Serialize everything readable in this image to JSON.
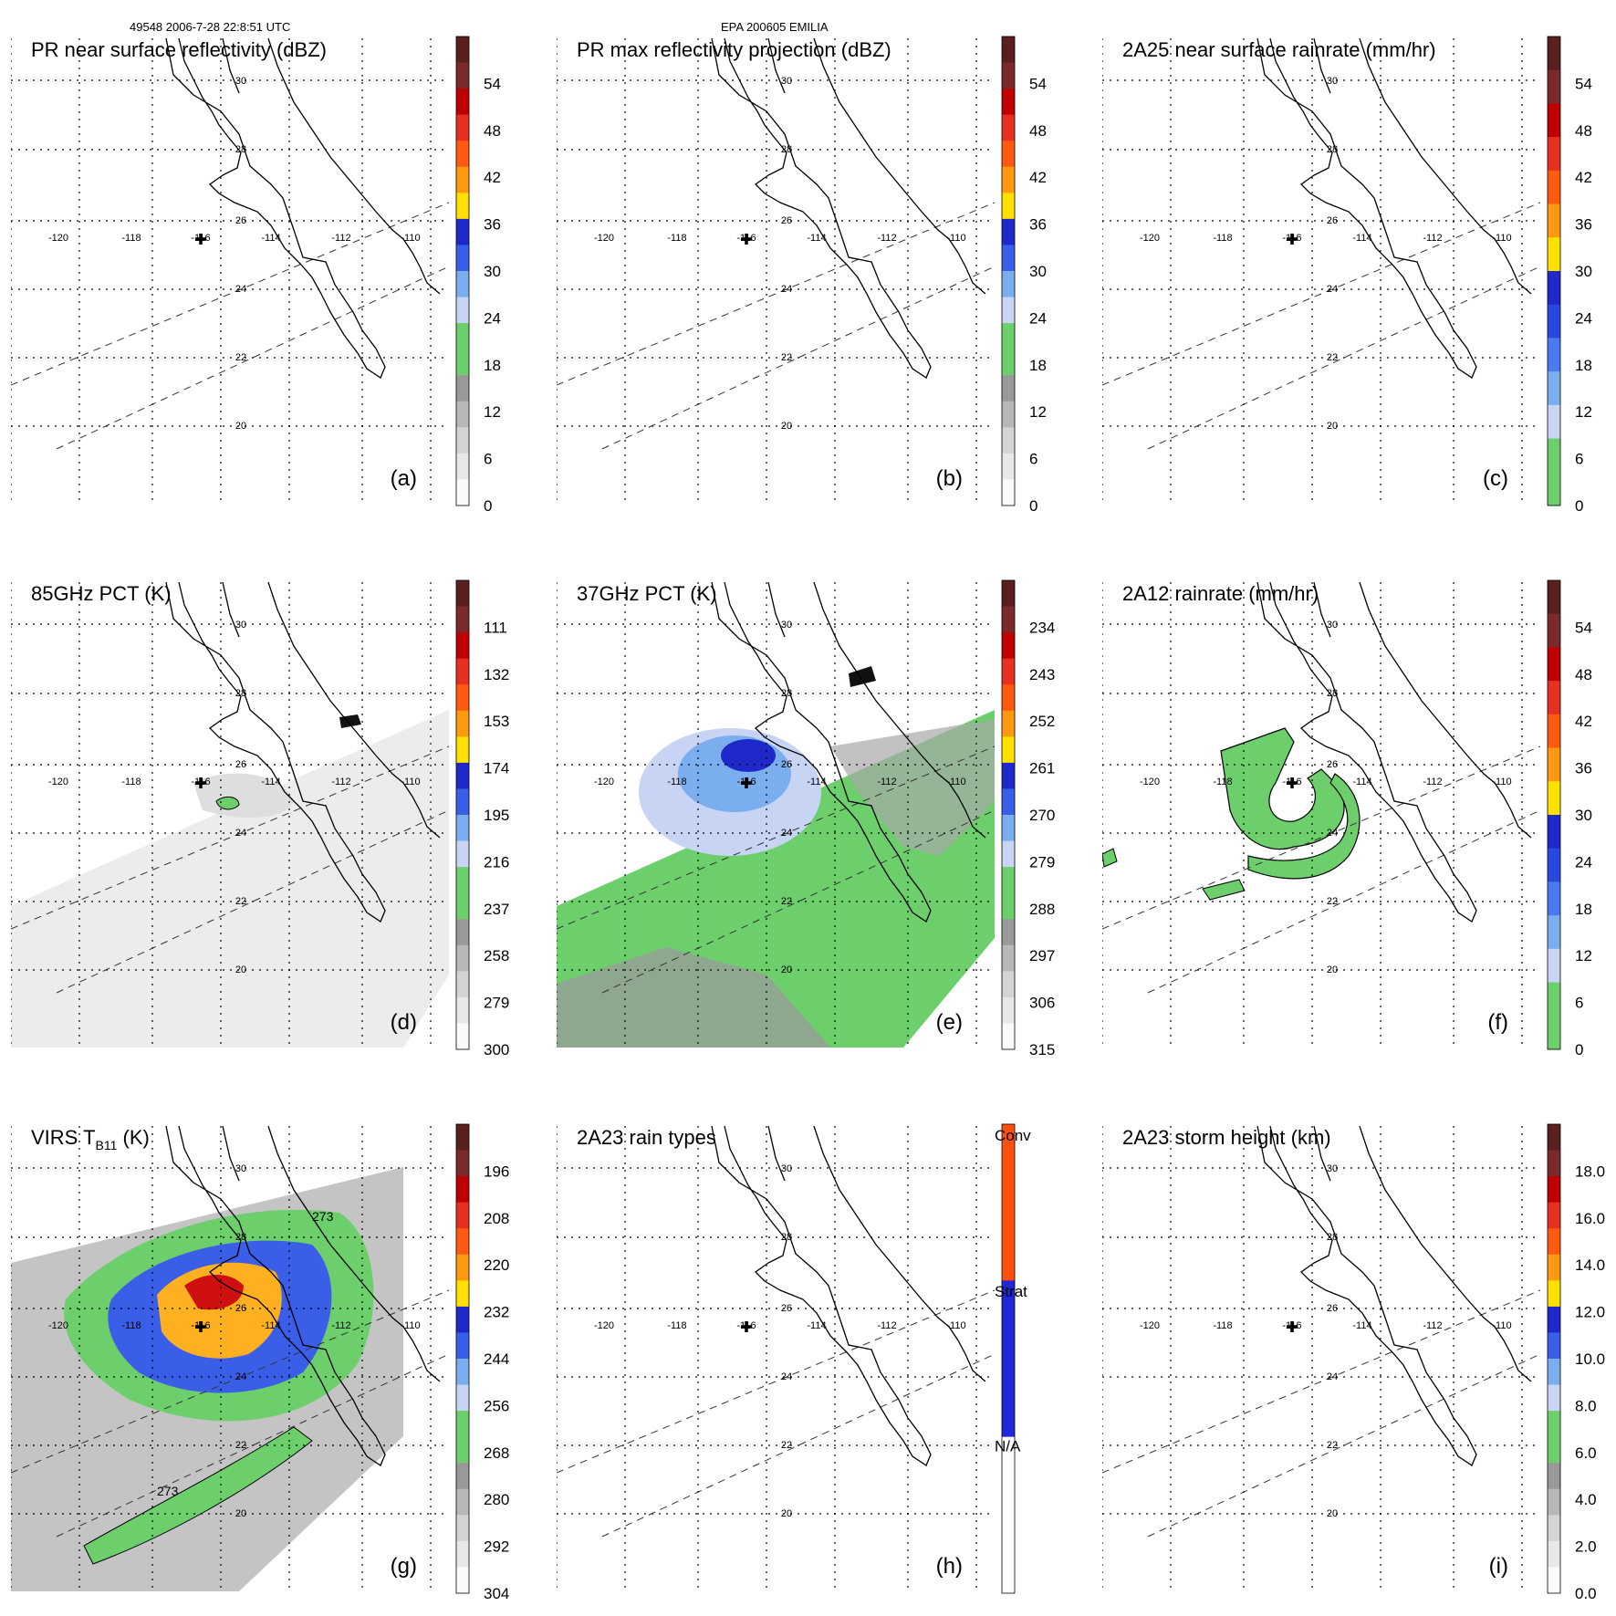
{
  "header": {
    "left": "49548 2006-7-28 22:8:51 UTC",
    "center": "EPA 200605 EMILIA"
  },
  "lon_labels": [
    "-120",
    "-118",
    "-116",
    "-114",
    "-112",
    "-110"
  ],
  "lat_labels": [
    "30",
    "28",
    "26",
    "24",
    "22",
    "20"
  ],
  "panels": [
    {
      "id": "a",
      "title": "PR near surface reflectivity (dBZ)",
      "letter": "(a)",
      "ticks": [
        "54",
        "48",
        "42",
        "36",
        "30",
        "24",
        "18",
        "12",
        "6",
        "0"
      ],
      "colors": [
        "#5a1f1f",
        "#7a2a2a",
        "#c00000",
        "#e83020",
        "#ff5a10",
        "#ff9a10",
        "#ffe000",
        "#1f28c8",
        "#3a5ee8",
        "#7aaeee",
        "#c8d4f4",
        "#6ccf6c",
        "#6ccf6c",
        "#999999",
        "#b8b8b8",
        "#d4d4d4",
        "#e8e8e8",
        "#fafafa"
      ],
      "fill": "none"
    },
    {
      "id": "b",
      "title": "PR max reflectivity projection (dBZ)",
      "letter": "(b)",
      "ticks": [
        "54",
        "48",
        "42",
        "36",
        "30",
        "24",
        "18",
        "12",
        "6",
        "0"
      ],
      "colors": [
        "#5a1f1f",
        "#7a2a2a",
        "#c00000",
        "#e83020",
        "#ff5a10",
        "#ff9a10",
        "#ffe000",
        "#1f28c8",
        "#3a5ee8",
        "#7aaeee",
        "#c8d4f4",
        "#6ccf6c",
        "#6ccf6c",
        "#999999",
        "#b8b8b8",
        "#d4d4d4",
        "#e8e8e8",
        "#fafafa"
      ],
      "fill": "none"
    },
    {
      "id": "c",
      "title": "2A25 near surface rainrate (mm/hr)",
      "letter": "(c)",
      "ticks": [
        "54",
        "48",
        "42",
        "36",
        "30",
        "24",
        "18",
        "12",
        "6",
        "0"
      ],
      "colors": [
        "#5a1f1f",
        "#7a2a2a",
        "#c00000",
        "#e83020",
        "#ff5a10",
        "#ff9a10",
        "#ffe000",
        "#1f28c8",
        "#2a48e0",
        "#4a7aee",
        "#7aaeee",
        "#c8d4f4",
        "#6ccf6c",
        "#6ccf6c"
      ],
      "fill": "none"
    },
    {
      "id": "d",
      "title": "85GHz PCT (K)",
      "letter": "(d)",
      "ticks": [
        "111",
        "132",
        "153",
        "174",
        "195",
        "216",
        "237",
        "258",
        "279",
        "300"
      ],
      "colors": [
        "#5a1f1f",
        "#7a2a2a",
        "#c00000",
        "#e83020",
        "#ff5a10",
        "#ff9a10",
        "#ffe000",
        "#1f28c8",
        "#3a5ee8",
        "#7aaeee",
        "#c8d4f4",
        "#6ccf6c",
        "#6ccf6c",
        "#999999",
        "#b8b8b8",
        "#d4d4d4",
        "#e8e8e8",
        "#fafafa"
      ],
      "fill": "gray"
    },
    {
      "id": "e",
      "title": "37GHz PCT (K)",
      "letter": "(e)",
      "ticks": [
        "234",
        "243",
        "252",
        "261",
        "270",
        "279",
        "288",
        "297",
        "306",
        "315"
      ],
      "colors": [
        "#5a1f1f",
        "#7a2a2a",
        "#c00000",
        "#e83020",
        "#ff5a10",
        "#ff9a10",
        "#ffe000",
        "#1f28c8",
        "#3a5ee8",
        "#7aaeee",
        "#c8d4f4",
        "#6ccf6c",
        "#6ccf6c",
        "#999999",
        "#b8b8b8",
        "#d4d4d4",
        "#e8e8e8",
        "#fafafa"
      ],
      "fill": "green"
    },
    {
      "id": "f",
      "title": "2A12 rainrate (mm/hr)",
      "letter": "(f)",
      "ticks": [
        "54",
        "48",
        "42",
        "36",
        "30",
        "24",
        "18",
        "12",
        "6",
        "0"
      ],
      "colors": [
        "#5a1f1f",
        "#7a2a2a",
        "#c00000",
        "#e83020",
        "#ff5a10",
        "#ff9a10",
        "#ffe000",
        "#1f28c8",
        "#2a48e0",
        "#4a7aee",
        "#7aaeee",
        "#c8d4f4",
        "#6ccf6c",
        "#6ccf6c"
      ],
      "fill": "spiral"
    },
    {
      "id": "g",
      "title": "VIRS T",
      "title_sub": "B11",
      "title_suffix": " (K)",
      "letter": "(g)",
      "ticks": [
        "196",
        "208",
        "220",
        "232",
        "244",
        "256",
        "268",
        "280",
        "292",
        "304"
      ],
      "colors": [
        "#5a1f1f",
        "#7a2a2a",
        "#c00000",
        "#e83020",
        "#ff5a10",
        "#ff9a10",
        "#ffe000",
        "#1f28c8",
        "#3a5ee8",
        "#7aaeee",
        "#c8d4f4",
        "#6ccf6c",
        "#6ccf6c",
        "#999999",
        "#b8b8b8",
        "#d4d4d4",
        "#e8e8e8",
        "#fafafa"
      ],
      "fill": "ir",
      "contour_labels": [
        "273",
        "273"
      ]
    },
    {
      "id": "h",
      "title": "2A23 rain types",
      "letter": "(h)",
      "ticks": [
        "Conv",
        "Strat",
        "N/A"
      ],
      "colors": [
        "#ff5010",
        "#1f28d8",
        "#ffffff"
      ],
      "fill": "none",
      "categorical": true
    },
    {
      "id": "i",
      "title": "2A23 storm height (km)",
      "letter": "(i)",
      "ticks": [
        "18.0",
        "16.0",
        "14.0",
        "12.0",
        "10.0",
        "8.0",
        "6.0",
        "4.0",
        "2.0",
        "0.0"
      ],
      "colors": [
        "#5a1f1f",
        "#7a2a2a",
        "#c00000",
        "#e83020",
        "#ff5a10",
        "#ff9a10",
        "#ffe000",
        "#1f28c8",
        "#3a5ee8",
        "#7aaeee",
        "#c8d4f4",
        "#6ccf6c",
        "#6ccf6c",
        "#999999",
        "#b8b8b8",
        "#d4d4d4",
        "#e8e8e8",
        "#fafafa"
      ],
      "fill": "none"
    }
  ]
}
